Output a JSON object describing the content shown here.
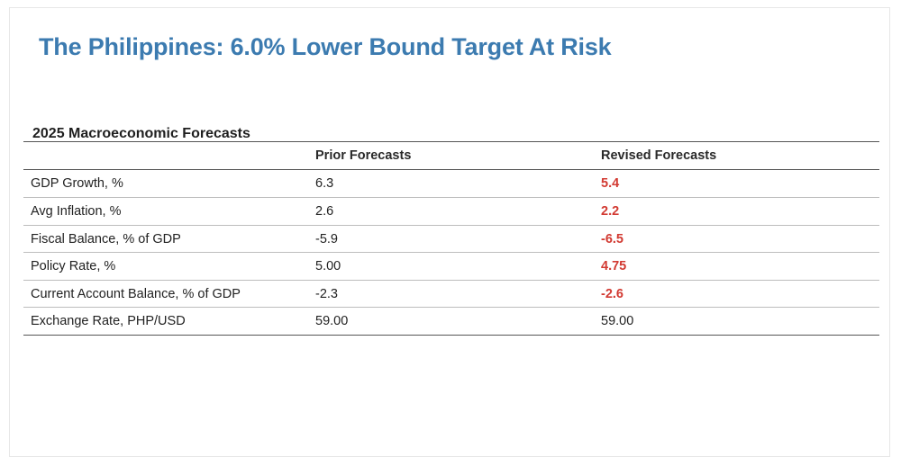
{
  "page": {
    "title": "The Philippines: 6.0% Lower Bound Target At Risk"
  },
  "table": {
    "title": "2025 Macroeconomic Forecasts",
    "headers": {
      "label": "",
      "prior": "Prior Forecasts",
      "revised": "Revised Forecasts"
    },
    "rows": [
      {
        "label": "GDP Growth, %",
        "prior": "6.3",
        "revised": "5.4",
        "revised_highlight": true
      },
      {
        "label": "Avg Inflation, %",
        "prior": "2.6",
        "revised": "2.2",
        "revised_highlight": true
      },
      {
        "label": "Fiscal Balance, % of GDP",
        "prior": "-5.9",
        "revised": "-6.5",
        "revised_highlight": true
      },
      {
        "label": "Policy Rate, %",
        "prior": "5.00",
        "revised": "4.75",
        "revised_highlight": true
      },
      {
        "label": "Current Account Balance, % of GDP",
        "prior": "-2.3",
        "revised": "-2.6",
        "revised_highlight": true
      },
      {
        "label": "Exchange Rate, PHP/USD",
        "prior": "59.00",
        "revised": "59.00",
        "revised_highlight": false
      }
    ]
  },
  "colors": {
    "title": "#3c7bb0",
    "highlight": "#d23a32"
  }
}
